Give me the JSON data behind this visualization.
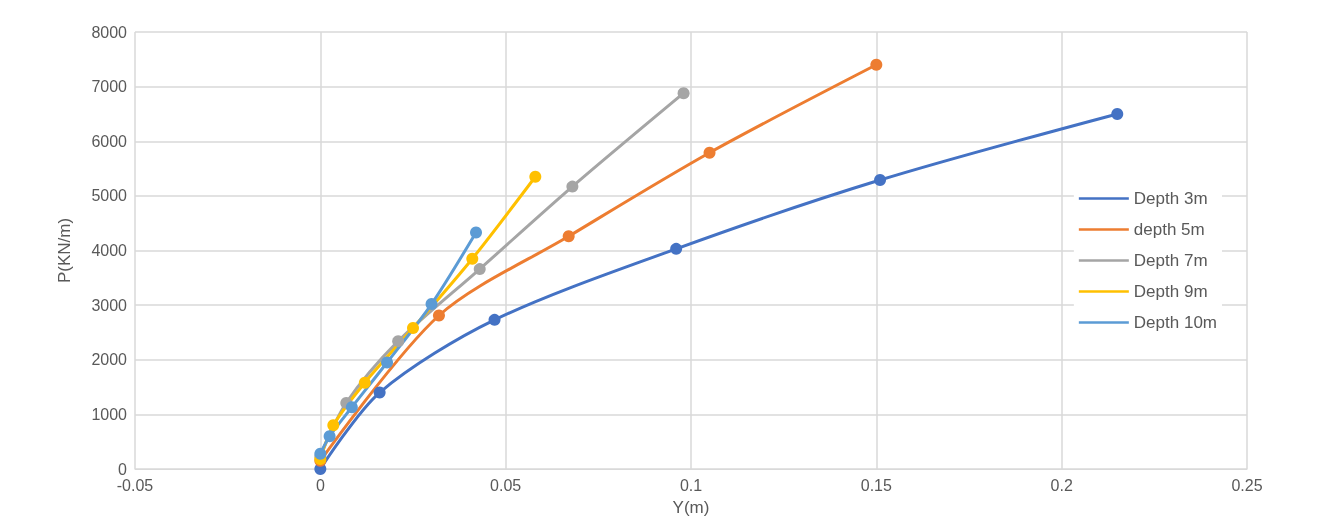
{
  "chart_data": {
    "type": "line",
    "xlabel": "Y(m)",
    "ylabel": "P(KN/m)",
    "xlim": [
      -0.05,
      0.25
    ],
    "xticks": [
      -0.05,
      0,
      0.05,
      0.1,
      0.15,
      0.2,
      0.25
    ],
    "ylim": [
      0,
      8000
    ],
    "yticks": [
      0,
      1000,
      2000,
      3000,
      4000,
      5000,
      6000,
      7000,
      8000
    ],
    "grid": true,
    "legend": "right",
    "marker": "circle",
    "line_style": "solid",
    "series": [
      {
        "name": "Depth 3m",
        "color": "#4472c4",
        "x": [
          0,
          0.016,
          0.047,
          0.096,
          0.151,
          0.215
        ],
        "values": [
          0,
          1400,
          2730,
          4030,
          5290,
          6500
        ]
      },
      {
        "name": "depth 5m",
        "color": "#ed7d31",
        "x": [
          0,
          0.032,
          0.067,
          0.105,
          0.15
        ],
        "values": [
          150,
          2810,
          4260,
          5790,
          7400
        ]
      },
      {
        "name": "Depth 7m",
        "color": "#a5a5a5",
        "x": [
          0,
          0.007,
          0.021,
          0.043,
          0.068,
          0.098
        ],
        "values": [
          230,
          1210,
          2340,
          3660,
          5170,
          6880
        ]
      },
      {
        "name": "Depth 9m",
        "color": "#ffc000",
        "x": [
          0,
          0.0035,
          0.012,
          0.025,
          0.041,
          0.058
        ],
        "values": [
          180,
          800,
          1580,
          2580,
          3850,
          5350
        ]
      },
      {
        "name": "Depth 10m",
        "color": "#5b9bd5",
        "x": [
          0,
          0.0025,
          0.0085,
          0.018,
          0.03,
          0.042
        ],
        "values": [
          280,
          600,
          1130,
          1950,
          3020,
          4330
        ]
      }
    ]
  }
}
